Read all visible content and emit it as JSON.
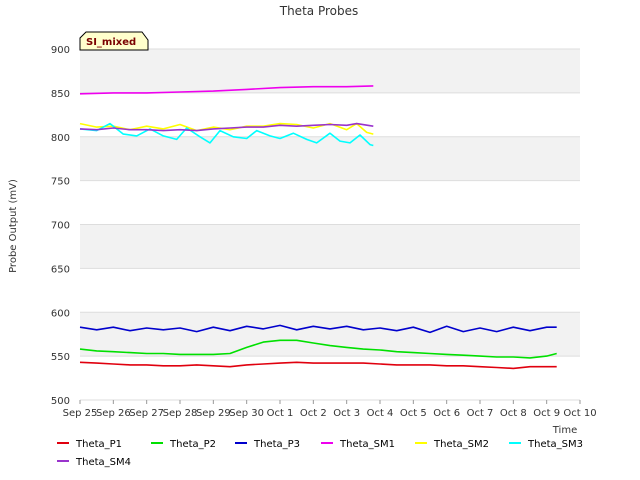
{
  "chart_data": {
    "type": "line",
    "title": "Theta Probes",
    "badge": "SI_mixed",
    "xlabel": "Time",
    "ylabel": "Probe Output (mV)",
    "ylim": [
      500,
      900
    ],
    "yticks": [
      500,
      550,
      600,
      650,
      700,
      750,
      800,
      850,
      900
    ],
    "xlim": [
      0,
      15
    ],
    "x_tick_labels": [
      "Sep 25",
      "Sep 26",
      "Sep 27",
      "Sep 28",
      "Sep 29",
      "Sep 30",
      "Oct 1",
      "Oct 2",
      "Oct 3",
      "Oct 4",
      "Oct 5",
      "Oct 6",
      "Oct 7",
      "Oct 8",
      "Oct 9",
      "Oct 10"
    ],
    "grid": true,
    "legend_position": "bottom",
    "series": [
      {
        "name": "Theta_P1",
        "color": "#e0000e",
        "x": [
          0,
          0.5,
          1,
          1.5,
          2,
          2.5,
          3,
          3.5,
          4,
          4.5,
          5,
          5.5,
          6,
          6.5,
          7,
          7.5,
          8,
          8.5,
          9,
          9.5,
          10,
          10.5,
          11,
          11.5,
          12,
          12.5,
          13,
          13.5,
          14,
          14.3
        ],
        "y": [
          543,
          542,
          541,
          540,
          540,
          539,
          539,
          540,
          539,
          538,
          540,
          541,
          542,
          543,
          542,
          542,
          542,
          542,
          541,
          540,
          540,
          540,
          539,
          539,
          538,
          537,
          536,
          538,
          538,
          538
        ]
      },
      {
        "name": "Theta_P2",
        "color": "#00e000",
        "x": [
          0,
          0.5,
          1,
          1.5,
          2,
          2.5,
          3,
          3.5,
          4,
          4.5,
          5,
          5.5,
          6,
          6.5,
          7,
          7.5,
          8,
          8.5,
          9,
          9.5,
          10,
          10.5,
          11,
          11.5,
          12,
          12.5,
          13,
          13.5,
          14,
          14.3
        ],
        "y": [
          558,
          556,
          555,
          554,
          553,
          553,
          552,
          552,
          552,
          553,
          560,
          566,
          568,
          568,
          565,
          562,
          560,
          558,
          557,
          555,
          554,
          553,
          552,
          551,
          550,
          549,
          549,
          548,
          550,
          553
        ]
      },
      {
        "name": "Theta_P3",
        "color": "#0000cc",
        "x": [
          0,
          0.5,
          1,
          1.5,
          2,
          2.5,
          3,
          3.5,
          4,
          4.5,
          5,
          5.5,
          6,
          6.5,
          7,
          7.5,
          8,
          8.5,
          9,
          9.5,
          10,
          10.5,
          11,
          11.5,
          12,
          12.5,
          13,
          13.5,
          14,
          14.3
        ],
        "y": [
          583,
          580,
          583,
          579,
          582,
          580,
          582,
          578,
          583,
          579,
          584,
          581,
          585,
          580,
          584,
          581,
          584,
          580,
          582,
          579,
          583,
          577,
          584,
          578,
          582,
          578,
          583,
          579,
          583,
          583
        ]
      },
      {
        "name": "Theta_SM1",
        "color": "#ee00ee",
        "x": [
          0,
          1,
          2,
          3,
          4,
          5,
          6,
          7,
          8,
          8.8
        ],
        "y": [
          849,
          850,
          850,
          851,
          852,
          854,
          856,
          857,
          857,
          858
        ]
      },
      {
        "name": "Theta_SM2",
        "color": "#ffff00",
        "x": [
          0,
          0.5,
          1,
          1.5,
          2,
          2.5,
          3,
          3.5,
          4,
          4.5,
          5,
          5.5,
          6,
          6.5,
          7,
          7.5,
          8,
          8.3,
          8.6,
          8.8
        ],
        "y": [
          815,
          811,
          812,
          808,
          812,
          809,
          814,
          807,
          811,
          808,
          812,
          812,
          815,
          814,
          810,
          815,
          808,
          815,
          805,
          803
        ]
      },
      {
        "name": "Theta_SM3",
        "color": "#00ffff",
        "x": [
          0,
          0.5,
          0.9,
          1.3,
          1.7,
          2.1,
          2.5,
          2.9,
          3.2,
          3.6,
          3.9,
          4.2,
          4.6,
          5.0,
          5.3,
          5.7,
          6.0,
          6.4,
          6.8,
          7.1,
          7.5,
          7.8,
          8.1,
          8.4,
          8.7,
          8.8
        ],
        "y": [
          809,
          807,
          815,
          803,
          801,
          809,
          801,
          797,
          810,
          800,
          793,
          807,
          800,
          798,
          807,
          801,
          798,
          804,
          797,
          793,
          804,
          795,
          793,
          802,
          791,
          790
        ]
      },
      {
        "name": "Theta_SM4",
        "color": "#9933cc",
        "x": [
          0,
          0.5,
          1,
          1.5,
          2,
          2.5,
          3,
          3.5,
          4,
          4.5,
          5,
          5.5,
          6,
          6.5,
          7,
          7.5,
          8,
          8.3,
          8.8
        ],
        "y": [
          809,
          808,
          810,
          808,
          808,
          807,
          808,
          807,
          809,
          810,
          811,
          811,
          813,
          812,
          813,
          814,
          813,
          815,
          812
        ]
      }
    ]
  }
}
